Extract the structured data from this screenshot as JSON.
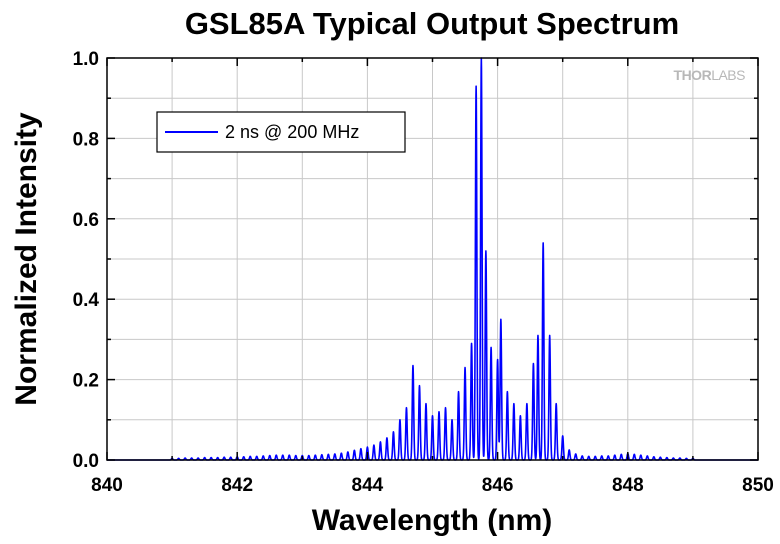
{
  "chart_data": {
    "type": "line",
    "title": "GSL85A Typical Output Spectrum",
    "xlabel": "Wavelength (nm)",
    "ylabel": "Normalized Intensity",
    "xlim": [
      840,
      850
    ],
    "ylim": [
      0,
      1.0
    ],
    "xticks": [
      "840",
      "842",
      "844",
      "846",
      "848",
      "850"
    ],
    "yticks": [
      "0.0",
      "0.2",
      "0.4",
      "0.6",
      "0.8",
      "1.0"
    ],
    "grid": true,
    "legend_position": "top-left",
    "series": [
      {
        "name": "2 ns @ 200 MHz",
        "color": "#0000ff",
        "peaks": [
          [
            841.0,
            0.004
          ],
          [
            841.1,
            0.004
          ],
          [
            841.2,
            0.005
          ],
          [
            841.3,
            0.005
          ],
          [
            841.4,
            0.005
          ],
          [
            841.5,
            0.006
          ],
          [
            841.6,
            0.006
          ],
          [
            841.7,
            0.006
          ],
          [
            841.8,
            0.007
          ],
          [
            841.9,
            0.007
          ],
          [
            842.0,
            0.008
          ],
          [
            842.1,
            0.008
          ],
          [
            842.2,
            0.009
          ],
          [
            842.3,
            0.009
          ],
          [
            842.4,
            0.01
          ],
          [
            842.5,
            0.011
          ],
          [
            842.6,
            0.012
          ],
          [
            842.7,
            0.012
          ],
          [
            842.8,
            0.012
          ],
          [
            842.9,
            0.011
          ],
          [
            843.0,
            0.011
          ],
          [
            843.1,
            0.011
          ],
          [
            843.2,
            0.012
          ],
          [
            843.3,
            0.013
          ],
          [
            843.4,
            0.014
          ],
          [
            843.5,
            0.015
          ],
          [
            843.6,
            0.017
          ],
          [
            843.7,
            0.02
          ],
          [
            843.8,
            0.024
          ],
          [
            843.9,
            0.028
          ],
          [
            844.0,
            0.032
          ],
          [
            844.1,
            0.037
          ],
          [
            844.2,
            0.045
          ],
          [
            844.3,
            0.055
          ],
          [
            844.4,
            0.07
          ],
          [
            844.5,
            0.1
          ],
          [
            844.6,
            0.13
          ],
          [
            844.7,
            0.235
          ],
          [
            844.8,
            0.185
          ],
          [
            844.9,
            0.14
          ],
          [
            845.0,
            0.11
          ],
          [
            845.1,
            0.12
          ],
          [
            845.2,
            0.13
          ],
          [
            845.3,
            0.1
          ],
          [
            845.4,
            0.17
          ],
          [
            845.5,
            0.23
          ],
          [
            845.6,
            0.29
          ],
          [
            845.67,
            0.93
          ],
          [
            845.75,
            1.0
          ],
          [
            845.82,
            0.52
          ],
          [
            845.9,
            0.28
          ],
          [
            846.0,
            0.25
          ],
          [
            846.05,
            0.35
          ],
          [
            846.15,
            0.17
          ],
          [
            846.25,
            0.14
          ],
          [
            846.35,
            0.11
          ],
          [
            846.45,
            0.14
          ],
          [
            846.55,
            0.24
          ],
          [
            846.62,
            0.31
          ],
          [
            846.7,
            0.54
          ],
          [
            846.8,
            0.31
          ],
          [
            846.9,
            0.14
          ],
          [
            847.0,
            0.06
          ],
          [
            847.1,
            0.025
          ],
          [
            847.2,
            0.015
          ],
          [
            847.3,
            0.01
          ],
          [
            847.4,
            0.009
          ],
          [
            847.5,
            0.009
          ],
          [
            847.6,
            0.01
          ],
          [
            847.7,
            0.01
          ],
          [
            847.8,
            0.012
          ],
          [
            847.9,
            0.014
          ],
          [
            848.0,
            0.016
          ],
          [
            848.1,
            0.014
          ],
          [
            848.2,
            0.012
          ],
          [
            848.3,
            0.01
          ],
          [
            848.4,
            0.008
          ],
          [
            848.5,
            0.007
          ],
          [
            848.6,
            0.006
          ],
          [
            848.7,
            0.005
          ],
          [
            848.8,
            0.005
          ],
          [
            848.9,
            0.004
          ],
          [
            849.0,
            0.004
          ]
        ]
      }
    ]
  },
  "watermark": {
    "bold": "THOR",
    "light": "LABS"
  }
}
